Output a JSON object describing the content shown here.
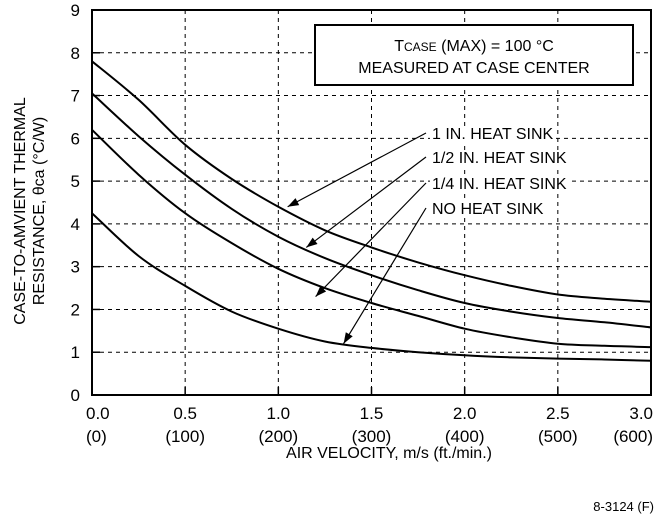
{
  "chart_data": {
    "type": "line",
    "xlabel": "AIR VELOCITY, m/s (ft./min.)",
    "ylabel_line1": "CASE-TO-AMVIENT THERMAL",
    "ylabel_line2": "RESISTANCE, θca (°C/W)",
    "xlim": [
      0,
      3
    ],
    "ylim": [
      0,
      9
    ],
    "x_ticks": [
      {
        "value": 0.0,
        "label": "0.0",
        "sub": "(0)"
      },
      {
        "value": 0.5,
        "label": "0.5",
        "sub": "(100)"
      },
      {
        "value": 1.0,
        "label": "1.0",
        "sub": "(200)"
      },
      {
        "value": 1.5,
        "label": "1.5",
        "sub": "(300)"
      },
      {
        "value": 2.0,
        "label": "2.0",
        "sub": "(400)"
      },
      {
        "value": 2.5,
        "label": "2.5",
        "sub": "(500)"
      },
      {
        "value": 3.0,
        "label": "3.0",
        "sub": "(600)"
      }
    ],
    "y_ticks": [
      "0",
      "1",
      "2",
      "3",
      "4",
      "5",
      "6",
      "7",
      "8",
      "9"
    ],
    "grid": true,
    "annotation_box": {
      "line1_prefix": "T",
      "line1_subscript": "CASE",
      "line1_rest": " (MAX) = 100 °C",
      "line2": "MEASURED AT CASE CENTER"
    },
    "series": [
      {
        "name": "1 IN. HEAT SINK",
        "x": [
          0,
          0.25,
          0.5,
          0.75,
          1.0,
          1.25,
          1.5,
          1.75,
          2.0,
          2.25,
          2.5,
          2.75,
          3.0
        ],
        "y": [
          7.8,
          6.9,
          5.85,
          5.05,
          4.4,
          3.85,
          3.45,
          3.1,
          2.8,
          2.55,
          2.35,
          2.25,
          2.18
        ],
        "label_point": [
          1.05,
          4.4
        ]
      },
      {
        "name": "1/2 IN. HEAT SINK",
        "x": [
          0,
          0.25,
          0.5,
          0.75,
          1.0,
          1.25,
          1.5,
          1.75,
          2.0,
          2.25,
          2.5,
          2.75,
          3.0
        ],
        "y": [
          7.05,
          6.05,
          5.15,
          4.35,
          3.7,
          3.2,
          2.8,
          2.45,
          2.15,
          1.95,
          1.8,
          1.7,
          1.58
        ],
        "label_point": [
          1.15,
          3.45
        ]
      },
      {
        "name": "1/4 IN. HEAT SINK",
        "x": [
          0,
          0.25,
          0.5,
          0.75,
          1.0,
          1.25,
          1.5,
          1.75,
          2.0,
          2.25,
          2.5,
          2.75,
          3.0
        ],
        "y": [
          6.2,
          5.15,
          4.25,
          3.55,
          2.95,
          2.5,
          2.15,
          1.85,
          1.55,
          1.35,
          1.2,
          1.15,
          1.12
        ],
        "label_point": [
          1.2,
          2.3
        ]
      },
      {
        "name": "NO HEAT SINK",
        "x": [
          0,
          0.25,
          0.5,
          0.75,
          1.0,
          1.25,
          1.5,
          1.75,
          2.0,
          2.25,
          2.5,
          2.75,
          3.0
        ],
        "y": [
          4.25,
          3.25,
          2.55,
          1.95,
          1.55,
          1.25,
          1.1,
          1.0,
          0.93,
          0.88,
          0.85,
          0.83,
          0.8
        ],
        "label_point": [
          1.35,
          1.2
        ]
      }
    ]
  },
  "footer_code": "8-3124 (F)"
}
